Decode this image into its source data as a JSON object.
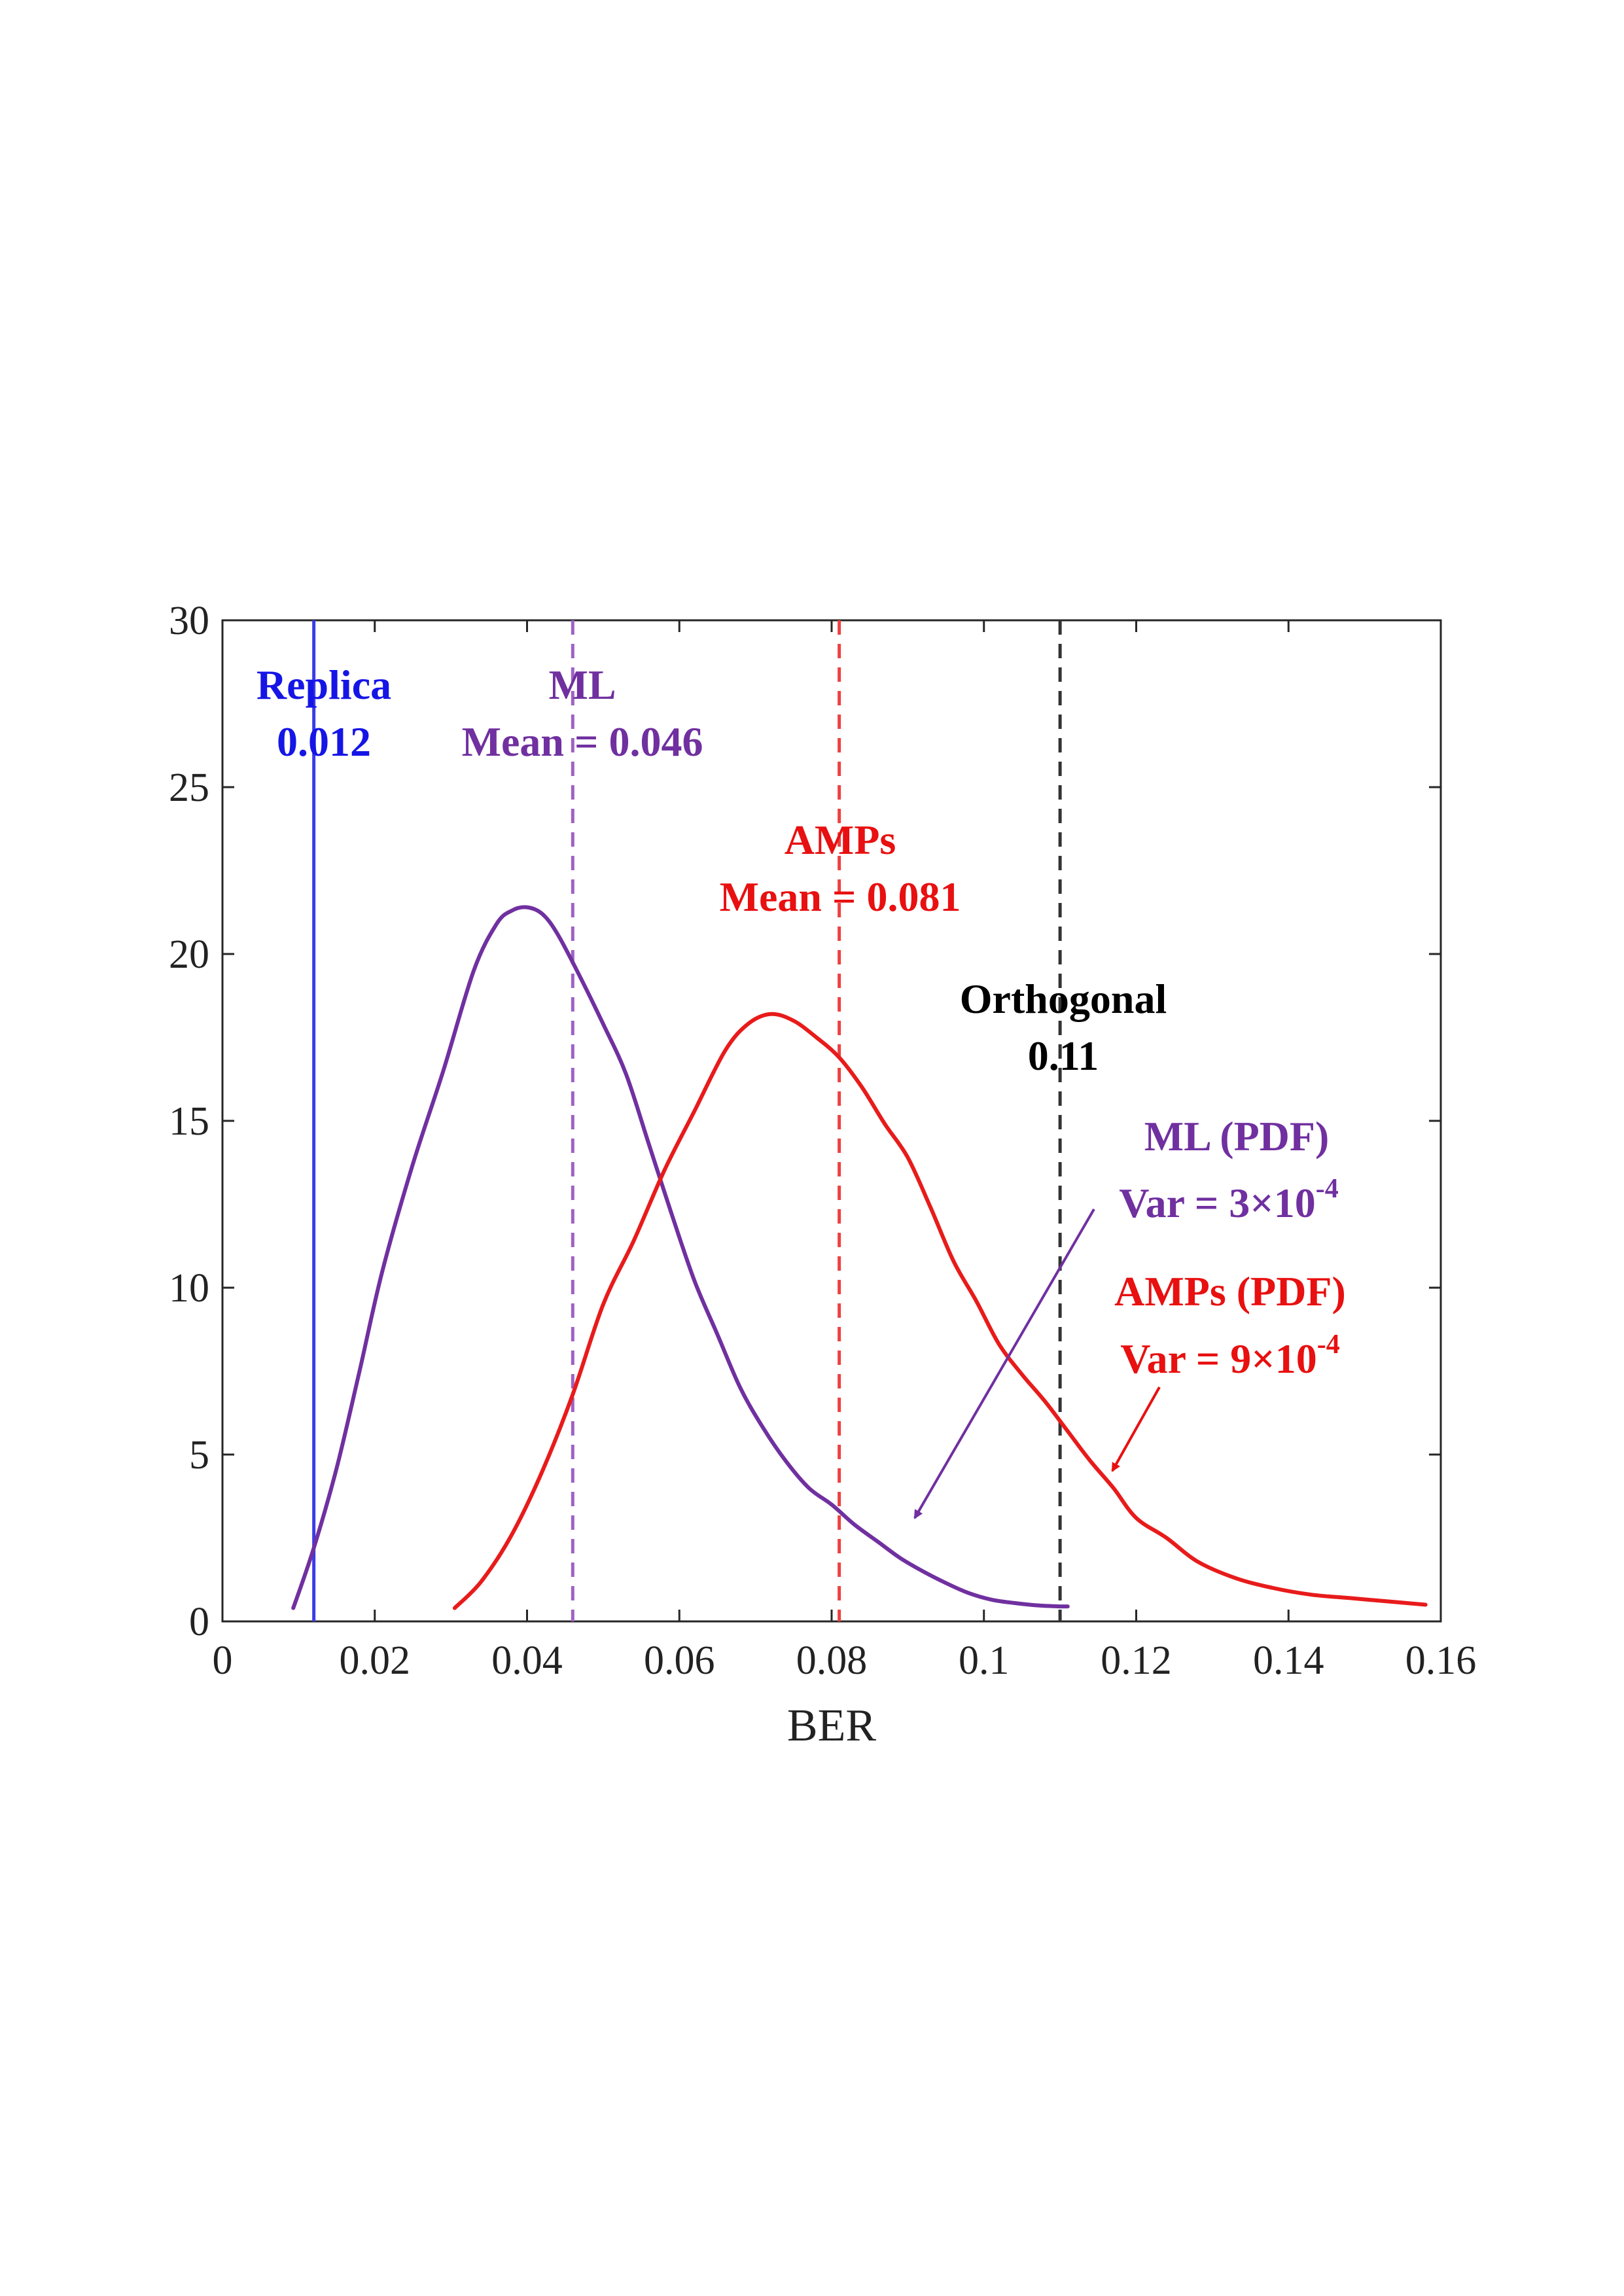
{
  "chart_data": {
    "type": "line",
    "title": "",
    "xlabel": "BER",
    "ylabel": "",
    "xlim": [
      0,
      0.16
    ],
    "ylim": [
      0,
      30
    ],
    "grid": false,
    "xticks": [
      0,
      0.02,
      0.04,
      0.06,
      0.08,
      0.1,
      0.12,
      0.14,
      0.16
    ],
    "xtick_labels": [
      "0",
      "0.02",
      "0.04",
      "0.06",
      "0.08",
      "0.1",
      "0.12",
      "0.14",
      "0.16"
    ],
    "yticks": [
      0,
      5,
      10,
      15,
      20,
      25,
      30
    ],
    "ytick_labels": [
      "0",
      "5",
      "10",
      "15",
      "20",
      "25",
      "30"
    ],
    "series": [
      {
        "name": "ML (PDF)",
        "color": "#7030A0",
        "x": [
          0.0093,
          0.012,
          0.015,
          0.018,
          0.021,
          0.025,
          0.029,
          0.033,
          0.036,
          0.038,
          0.04,
          0.042,
          0.044,
          0.047,
          0.05,
          0.053,
          0.056,
          0.059,
          0.062,
          0.065,
          0.068,
          0.071,
          0.074,
          0.077,
          0.08,
          0.083,
          0.086,
          0.089,
          0.092,
          0.095,
          0.098,
          0.101,
          0.104,
          0.107,
          0.11,
          0.111
        ],
        "y": [
          0.4,
          2.2,
          4.6,
          7.5,
          10.5,
          13.7,
          16.5,
          19.5,
          20.9,
          21.3,
          21.4,
          21.2,
          20.6,
          19.3,
          17.9,
          16.4,
          14.3,
          12.2,
          10.2,
          8.6,
          7.0,
          5.8,
          4.8,
          4.0,
          3.5,
          2.9,
          2.4,
          1.9,
          1.5,
          1.15,
          0.85,
          0.65,
          0.55,
          0.48,
          0.45,
          0.45
        ]
      },
      {
        "name": "AMPs (PDF)",
        "color": "#E81B1B",
        "x": [
          0.0305,
          0.034,
          0.038,
          0.042,
          0.046,
          0.05,
          0.054,
          0.058,
          0.062,
          0.066,
          0.069,
          0.072,
          0.075,
          0.078,
          0.081,
          0.084,
          0.087,
          0.09,
          0.093,
          0.096,
          0.099,
          0.102,
          0.105,
          0.108,
          0.111,
          0.114,
          0.117,
          0.12,
          0.124,
          0.128,
          0.133,
          0.138,
          0.143,
          0.148,
          0.153,
          0.158
        ],
        "y": [
          0.4,
          1.2,
          2.6,
          4.5,
          6.8,
          9.5,
          11.4,
          13.5,
          15.3,
          17.1,
          17.9,
          18.2,
          18.0,
          17.5,
          16.9,
          16.0,
          14.9,
          13.9,
          12.4,
          10.8,
          9.6,
          8.3,
          7.4,
          6.6,
          5.7,
          4.8,
          4.0,
          3.1,
          2.5,
          1.8,
          1.3,
          1.0,
          0.8,
          0.7,
          0.6,
          0.5
        ]
      }
    ],
    "vertical_lines": [
      {
        "name": "Replica",
        "x": 0.012,
        "style": "solid",
        "color": "#3B3BE8"
      },
      {
        "name": "ML mean",
        "x": 0.046,
        "style": "dashed",
        "color": "#9E63C4"
      },
      {
        "name": "AMPs mean",
        "x": 0.081,
        "style": "dashed",
        "color": "#EE4040"
      },
      {
        "name": "Orthogonal",
        "x": 0.11,
        "style": "dashed",
        "color": "#333333"
      }
    ],
    "annotations": {
      "replica": {
        "line1": "Replica",
        "line2": "0.012",
        "color": "#1515E6"
      },
      "ml": {
        "line1": "ML",
        "line2": "Mean = 0.046",
        "color": "#7030A0"
      },
      "amps": {
        "line1": "AMPs",
        "line2": "Mean = 0.081",
        "color": "#E81010"
      },
      "orthogonal": {
        "line1": "Orthogonal",
        "line2": "0.11",
        "color": "#000000"
      },
      "ml_pdf": {
        "line1": "ML (PDF)",
        "line2_prefix": "Var = 3×10",
        "line2_exp": "-4",
        "color": "#7030A0"
      },
      "amps_pdf": {
        "line1": "AMPs (PDF)",
        "line2_prefix": "Var = 9×10",
        "line2_exp": "-4",
        "color": "#E81010"
      }
    }
  }
}
